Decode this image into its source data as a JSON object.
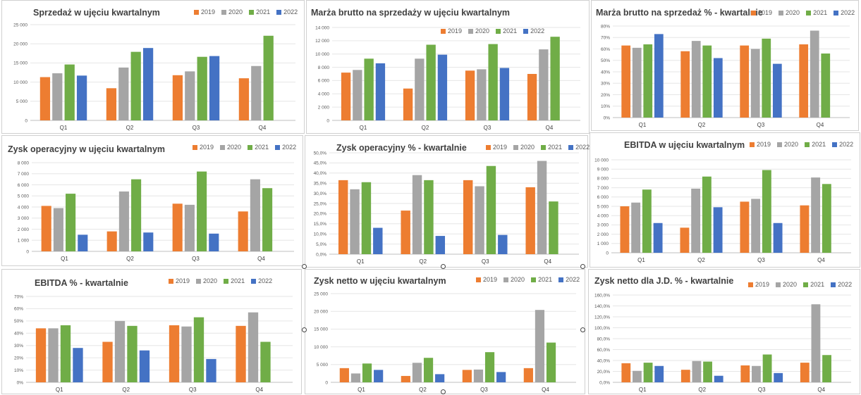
{
  "colors": {
    "2019": "#ED7D31",
    "2020": "#A5A5A5",
    "2021": "#70AD47",
    "2022": "#4472C4"
  },
  "chart_data": [
    {
      "type": "bar",
      "title": "Sprzedaż w ujęciu kwartalnym",
      "categories": [
        "Q1",
        "Q2",
        "Q3",
        "Q4"
      ],
      "ylim": [
        0,
        25000
      ],
      "yticks": [
        "0",
        "5 000",
        "10 000",
        "15 000",
        "20 000",
        "25 000"
      ],
      "series": [
        {
          "name": "2019",
          "values": [
            11300,
            8400,
            11800,
            11000
          ]
        },
        {
          "name": "2020",
          "values": [
            12300,
            13800,
            12800,
            14200
          ]
        },
        {
          "name": "2021",
          "values": [
            14600,
            17900,
            16600,
            22100
          ]
        },
        {
          "name": "2022",
          "values": [
            11700,
            18900,
            16800,
            null
          ]
        }
      ]
    },
    {
      "type": "bar",
      "title": "Marża brutto na sprzedaży w ujęciu kwartalnym",
      "categories": [
        "Q1",
        "Q2",
        "Q3",
        "Q4"
      ],
      "ylim": [
        0,
        14000
      ],
      "yticks": [
        "0",
        "2 000",
        "4 000",
        "6 000",
        "8 000",
        "10 000",
        "12 000",
        "14 000"
      ],
      "series": [
        {
          "name": "2019",
          "values": [
            7200,
            4800,
            7500,
            7000
          ]
        },
        {
          "name": "2020",
          "values": [
            7600,
            9300,
            7700,
            10700
          ]
        },
        {
          "name": "2021",
          "values": [
            9300,
            11400,
            11500,
            12600
          ]
        },
        {
          "name": "2022",
          "values": [
            8600,
            9900,
            7900,
            null
          ]
        }
      ]
    },
    {
      "type": "bar",
      "title": "Marża brutto na sprzedaż % - kwartalnie",
      "categories": [
        "Q1",
        "Q2",
        "Q3",
        "Q4"
      ],
      "ylim": [
        0,
        80
      ],
      "yticks": [
        "0%",
        "10%",
        "20%",
        "30%",
        "40%",
        "50%",
        "60%",
        "70%",
        "80%"
      ],
      "series": [
        {
          "name": "2019",
          "values": [
            63,
            58,
            63,
            64
          ]
        },
        {
          "name": "2020",
          "values": [
            61,
            67,
            60,
            76
          ]
        },
        {
          "name": "2021",
          "values": [
            64,
            63,
            69,
            56
          ]
        },
        {
          "name": "2022",
          "values": [
            73,
            52,
            47,
            null
          ]
        }
      ]
    },
    {
      "type": "bar",
      "title": "Zysk operacyjny w ujęciu kwartalnym",
      "categories": [
        "Q1",
        "Q2",
        "Q3",
        "Q4"
      ],
      "ylim": [
        0,
        8000
      ],
      "yticks": [
        "0",
        "1 000",
        "2 000",
        "3 000",
        "4 000",
        "5 000",
        "6 000",
        "7 000",
        "8 000"
      ],
      "series": [
        {
          "name": "2019",
          "values": [
            4100,
            1800,
            4300,
            3600
          ]
        },
        {
          "name": "2020",
          "values": [
            3900,
            5400,
            4200,
            6500
          ]
        },
        {
          "name": "2021",
          "values": [
            5200,
            6500,
            7200,
            5700
          ]
        },
        {
          "name": "2022",
          "values": [
            1500,
            1700,
            1600,
            null
          ]
        }
      ]
    },
    {
      "type": "bar",
      "title": "Zysk operacyjny % - kwartalnie",
      "categories": [
        "Q1",
        "Q2",
        "Q3",
        "Q4"
      ],
      "ylim": [
        0,
        50
      ],
      "yticks": [
        "0,0%",
        "5,0%",
        "10,0%",
        "15,0%",
        "20,0%",
        "25,0%",
        "30,0%",
        "35,0%",
        "40,0%",
        "45,0%",
        "50,0%"
      ],
      "series": [
        {
          "name": "2019",
          "values": [
            36.5,
            21.5,
            36.5,
            33
          ]
        },
        {
          "name": "2020",
          "values": [
            32,
            39,
            33.5,
            46
          ]
        },
        {
          "name": "2021",
          "values": [
            35.5,
            36.5,
            43.5,
            26
          ]
        },
        {
          "name": "2022",
          "values": [
            13,
            9,
            9.5,
            null
          ]
        }
      ]
    },
    {
      "type": "bar",
      "title": "EBITDA w ujęciu kwartalnym",
      "categories": [
        "Q1",
        "Q2",
        "Q3",
        "Q4"
      ],
      "ylim": [
        0,
        10000
      ],
      "yticks": [
        "0",
        "1 000",
        "2 000",
        "3 000",
        "4 000",
        "5 000",
        "6 000",
        "7 000",
        "8 000",
        "9 000",
        "10 000"
      ],
      "series": [
        {
          "name": "2019",
          "values": [
            5000,
            2700,
            5500,
            5100
          ]
        },
        {
          "name": "2020",
          "values": [
            5400,
            6900,
            5800,
            8100
          ]
        },
        {
          "name": "2021",
          "values": [
            6800,
            8200,
            8900,
            7400
          ]
        },
        {
          "name": "2022",
          "values": [
            3200,
            4900,
            3200,
            null
          ]
        }
      ]
    },
    {
      "type": "bar",
      "title": "EBITDA % - kwartalnie",
      "categories": [
        "Q1",
        "Q2",
        "Q3",
        "Q4"
      ],
      "ylim": [
        0,
        70
      ],
      "yticks": [
        "0%",
        "10%",
        "20%",
        "30%",
        "40%",
        "50%",
        "60%",
        "70%"
      ],
      "series": [
        {
          "name": "2019",
          "values": [
            44,
            33,
            46.5,
            46
          ]
        },
        {
          "name": "2020",
          "values": [
            44,
            50,
            45.5,
            57
          ]
        },
        {
          "name": "2021",
          "values": [
            46.5,
            46,
            53,
            33
          ]
        },
        {
          "name": "2022",
          "values": [
            28,
            26,
            19,
            null
          ]
        }
      ]
    },
    {
      "type": "bar",
      "title": "Zysk netto w ujęciu kwartalnym",
      "categories": [
        "Q1",
        "Q2",
        "Q3",
        "Q4"
      ],
      "ylim": [
        0,
        25000
      ],
      "yticks": [
        "0",
        "5 000",
        "10 000",
        "15 000",
        "20 000",
        "25 000"
      ],
      "series": [
        {
          "name": "2019",
          "values": [
            4000,
            1800,
            3500,
            4000
          ]
        },
        {
          "name": "2020",
          "values": [
            2500,
            5500,
            3600,
            20400
          ]
        },
        {
          "name": "2021",
          "values": [
            5300,
            6900,
            8500,
            11200
          ]
        },
        {
          "name": "2022",
          "values": [
            3500,
            2300,
            2900,
            null
          ]
        }
      ]
    },
    {
      "type": "bar",
      "title": "Zysk netto dla J.D. % - kwartalnie",
      "categories": [
        "Q1",
        "Q2",
        "Q3",
        "Q4"
      ],
      "ylim": [
        0,
        160
      ],
      "yticks": [
        "0,0%",
        "20,0%",
        "40,0%",
        "60,0%",
        "80,0%",
        "100,0%",
        "120,0%",
        "140,0%",
        "160,0%"
      ],
      "series": [
        {
          "name": "2019",
          "values": [
            35,
            23,
            31,
            36
          ]
        },
        {
          "name": "2020",
          "values": [
            21,
            39,
            30,
            143
          ]
        },
        {
          "name": "2021",
          "values": [
            36,
            38,
            51,
            50
          ]
        },
        {
          "name": "2022",
          "values": [
            30,
            12,
            17,
            null
          ]
        }
      ]
    }
  ]
}
